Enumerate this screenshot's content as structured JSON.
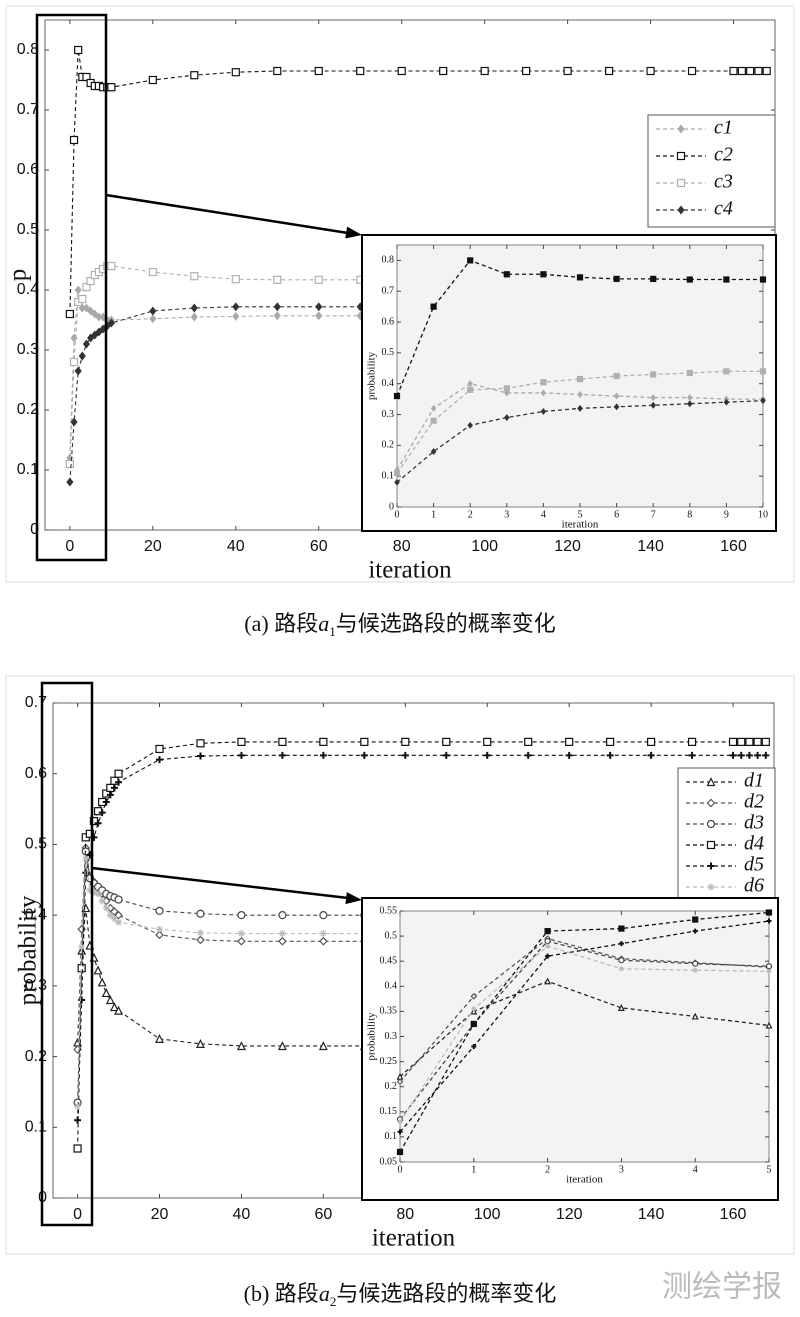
{
  "chart_data": [
    {
      "type": "line",
      "ylabel": "p",
      "xlabel": "iteration",
      "caption": [
        "(a) 路段",
        "a",
        "1",
        "与候选路段的概率变化"
      ],
      "xlim": [
        -6,
        170
      ],
      "ylim": [
        0,
        0.85
      ],
      "xticks": [
        0,
        20,
        40,
        60,
        80,
        100,
        120,
        140,
        160
      ],
      "yticks": [
        0,
        0.1,
        0.2,
        0.3,
        0.4,
        0.5,
        0.6,
        0.7,
        0.8
      ],
      "x": [
        0,
        1,
        2,
        3,
        4,
        5,
        6,
        7,
        8,
        9,
        10,
        20,
        30,
        40,
        50,
        60,
        70,
        80,
        90,
        100,
        110,
        120,
        130,
        140,
        150,
        160,
        162,
        164,
        166,
        168
      ],
      "series": [
        {
          "name": "c1",
          "color": "#aaaaaa",
          "marker": "diamond",
          "values": [
            0.12,
            0.32,
            0.4,
            0.37,
            0.37,
            0.365,
            0.36,
            0.355,
            0.355,
            0.35,
            0.35,
            0.352,
            0.355,
            0.356,
            0.357,
            0.357,
            0.357,
            0.357,
            0.357,
            0.357,
            0.357,
            0.357,
            0.357,
            0.357,
            0.357,
            0.357,
            0.357,
            0.357,
            0.357,
            0.357
          ]
        },
        {
          "name": "c2",
          "color": "#111111",
          "marker": "square-open",
          "values": [
            0.36,
            0.65,
            0.8,
            0.755,
            0.755,
            0.745,
            0.74,
            0.74,
            0.738,
            0.738,
            0.738,
            0.75,
            0.758,
            0.763,
            0.765,
            0.765,
            0.765,
            0.765,
            0.765,
            0.765,
            0.765,
            0.765,
            0.765,
            0.765,
            0.765,
            0.765,
            0.765,
            0.765,
            0.765,
            0.765
          ]
        },
        {
          "name": "c3",
          "color": "#b0b0b0",
          "marker": "square-open",
          "values": [
            0.11,
            0.28,
            0.38,
            0.385,
            0.405,
            0.415,
            0.425,
            0.43,
            0.435,
            0.44,
            0.44,
            0.43,
            0.423,
            0.418,
            0.417,
            0.417,
            0.417,
            0.417,
            0.417,
            0.417,
            0.417,
            0.417,
            0.417,
            0.417,
            0.417,
            0.417,
            0.417,
            0.417,
            0.417,
            0.417
          ]
        },
        {
          "name": "c4",
          "color": "#333333",
          "marker": "diamond",
          "values": [
            0.08,
            0.18,
            0.265,
            0.29,
            0.31,
            0.32,
            0.325,
            0.33,
            0.335,
            0.34,
            0.345,
            0.365,
            0.37,
            0.372,
            0.372,
            0.372,
            0.372,
            0.372,
            0.372,
            0.372,
            0.372,
            0.372,
            0.372,
            0.372,
            0.372,
            0.372,
            0.372,
            0.372,
            0.372,
            0.372
          ]
        }
      ],
      "inset": {
        "xlabel": "iteration",
        "ylabel": "probability",
        "xlim": [
          0,
          10
        ],
        "ylim": [
          0,
          0.85
        ],
        "xticks": [
          0,
          1,
          2,
          3,
          4,
          5,
          6,
          7,
          8,
          9,
          10
        ],
        "yticks": [
          0,
          0.1,
          0.2,
          0.3,
          0.4,
          0.5,
          0.6,
          0.7,
          0.8
        ]
      }
    },
    {
      "type": "line",
      "ylabel": "probability",
      "xlabel": "iteration",
      "caption": [
        "(b) 路段",
        "a",
        "2",
        "与候选路段的概率变化"
      ],
      "xlim": [
        -6,
        170
      ],
      "ylim": [
        0,
        0.7
      ],
      "xticks": [
        0,
        20,
        40,
        60,
        80,
        100,
        120,
        140,
        160
      ],
      "yticks": [
        0,
        0.1,
        0.2,
        0.3,
        0.4,
        0.5,
        0.6,
        0.7
      ],
      "x": [
        0,
        1,
        2,
        3,
        4,
        5,
        6,
        7,
        8,
        9,
        10,
        20,
        30,
        40,
        50,
        60,
        70,
        80,
        90,
        100,
        110,
        120,
        130,
        140,
        150,
        160,
        162,
        164,
        166,
        168
      ],
      "series": [
        {
          "name": "d1",
          "color": "#222222",
          "marker": "triangle-open",
          "values": [
            0.22,
            0.35,
            0.41,
            0.357,
            0.34,
            0.322,
            0.305,
            0.29,
            0.28,
            0.27,
            0.265,
            0.225,
            0.218,
            0.215,
            0.215,
            0.215,
            0.215,
            0.215,
            0.215,
            0.215,
            0.215,
            0.215,
            0.215,
            0.215,
            0.215,
            0.215,
            0.215,
            0.215,
            0.215,
            0.215
          ]
        },
        {
          "name": "d2",
          "color": "#555555",
          "marker": "diamond-open",
          "values": [
            0.21,
            0.38,
            0.495,
            0.455,
            0.447,
            0.438,
            0.43,
            0.42,
            0.41,
            0.405,
            0.4,
            0.372,
            0.365,
            0.363,
            0.363,
            0.363,
            0.363,
            0.363,
            0.363,
            0.363,
            0.363,
            0.363,
            0.363,
            0.363,
            0.363,
            0.363,
            0.363,
            0.363,
            0.363,
            0.363
          ]
        },
        {
          "name": "d3",
          "color": "#444444",
          "marker": "circle-open",
          "values": [
            0.135,
            0.325,
            0.49,
            0.452,
            0.445,
            0.44,
            0.435,
            0.43,
            0.427,
            0.425,
            0.422,
            0.406,
            0.402,
            0.4,
            0.4,
            0.4,
            0.4,
            0.4,
            0.4,
            0.4,
            0.4,
            0.4,
            0.4,
            0.4,
            0.4,
            0.4,
            0.4,
            0.4,
            0.4,
            0.4
          ]
        },
        {
          "name": "d4",
          "color": "#111111",
          "marker": "square-open",
          "values": [
            0.07,
            0.325,
            0.51,
            0.515,
            0.533,
            0.547,
            0.56,
            0.572,
            0.58,
            0.59,
            0.6,
            0.635,
            0.643,
            0.645,
            0.645,
            0.645,
            0.645,
            0.645,
            0.645,
            0.645,
            0.645,
            0.645,
            0.645,
            0.645,
            0.645,
            0.645,
            0.645,
            0.645,
            0.645,
            0.645
          ]
        },
        {
          "name": "d5",
          "color": "#111111",
          "marker": "plus",
          "values": [
            0.11,
            0.28,
            0.46,
            0.485,
            0.51,
            0.53,
            0.545,
            0.56,
            0.57,
            0.58,
            0.588,
            0.62,
            0.625,
            0.626,
            0.626,
            0.626,
            0.626,
            0.626,
            0.626,
            0.626,
            0.626,
            0.626,
            0.626,
            0.626,
            0.626,
            0.626,
            0.626,
            0.626,
            0.626,
            0.626
          ]
        },
        {
          "name": "d6",
          "color": "#bbbbbb",
          "marker": "star",
          "values": [
            0.13,
            0.355,
            0.48,
            0.435,
            0.432,
            0.43,
            0.42,
            0.41,
            0.4,
            0.395,
            0.39,
            0.38,
            0.375,
            0.374,
            0.374,
            0.374,
            0.374,
            0.374,
            0.374,
            0.374,
            0.374,
            0.374,
            0.374,
            0.374,
            0.374,
            0.374,
            0.374,
            0.374,
            0.374,
            0.374
          ]
        }
      ],
      "inset": {
        "xlabel": "iteration",
        "ylabel": "probability",
        "xlim": [
          0,
          5
        ],
        "ylim": [
          0.05,
          0.55
        ],
        "xticks": [
          0,
          1,
          2,
          3,
          4,
          5
        ],
        "yticks": [
          0.05,
          0.1,
          0.15,
          0.2,
          0.25,
          0.3,
          0.35,
          0.4,
          0.45,
          0.5,
          0.55
        ]
      }
    }
  ],
  "watermark": "测绘学报"
}
